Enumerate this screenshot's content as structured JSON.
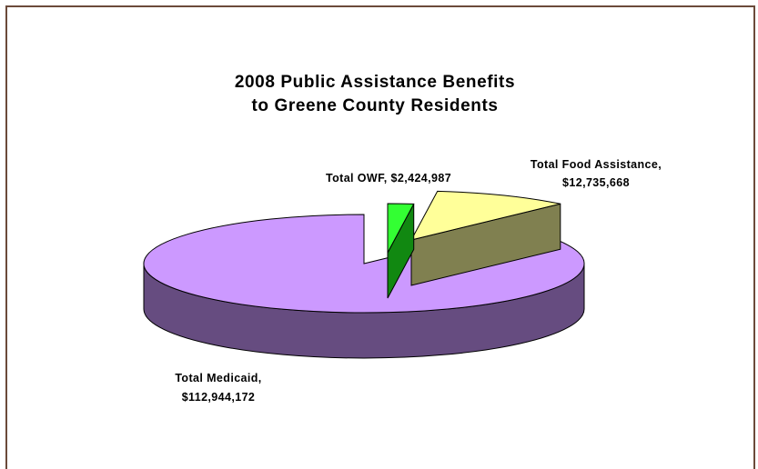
{
  "chart_data": {
    "type": "pie",
    "title_lines": [
      "2008 Public Assistance Benefits",
      "to Greene County Residents"
    ],
    "categories": [
      "Total Medicaid",
      "Total OWF",
      "Total Food Assistance"
    ],
    "values": [
      112944172,
      2424987,
      12735668
    ],
    "data_labels": [
      [
        "Total Medicaid,",
        "$112,944,172"
      ],
      [
        "Total OWF, $2,424,987"
      ],
      [
        "Total Food Assistance,",
        "$12,735,668"
      ]
    ],
    "colors": {
      "medicaid_top": "#cc99ff",
      "medicaid_side": "#664c80",
      "owf_top": "#33ff33",
      "owf_side": "#118811",
      "food_top": "#ffff99",
      "food_side": "#808050"
    },
    "exploded": "Total OWF, Total Food Assistance",
    "three_d": true,
    "legend": "none"
  }
}
